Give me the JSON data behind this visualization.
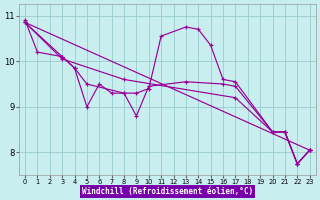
{
  "bg_color": "#c8eef0",
  "line_color": "#990099",
  "grid_color": "#99cccc",
  "xlabel": "Windchill (Refroidissement éolien,°C)",
  "xlabel_bg": "#7700aa",
  "xlim": [
    -0.5,
    23.5
  ],
  "ylim": [
    7.5,
    11.25
  ],
  "xticks": [
    0,
    1,
    2,
    3,
    4,
    5,
    6,
    7,
    8,
    9,
    10,
    11,
    12,
    13,
    14,
    15,
    16,
    17,
    18,
    19,
    20,
    21,
    22,
    23
  ],
  "yticks": [
    8,
    9,
    10,
    11
  ],
  "lines": [
    {
      "x": [
        0,
        1,
        3,
        4,
        5,
        6,
        7,
        8,
        9,
        10,
        11,
        13,
        14,
        15,
        16,
        17,
        20,
        21,
        22,
        23
      ],
      "y": [
        10.9,
        10.2,
        10.1,
        9.85,
        9.0,
        9.5,
        9.3,
        9.3,
        9.3,
        9.4,
        10.55,
        10.75,
        10.7,
        10.35,
        9.6,
        9.55,
        8.45,
        8.45,
        7.75,
        8.05
      ]
    },
    {
      "x": [
        0,
        3,
        4,
        5,
        8,
        9,
        10,
        13,
        16,
        17,
        20,
        21,
        22,
        23
      ],
      "y": [
        10.85,
        10.1,
        9.85,
        9.5,
        9.3,
        8.8,
        9.45,
        9.55,
        9.5,
        9.45,
        8.45,
        8.45,
        7.75,
        8.05
      ]
    },
    {
      "x": [
        0,
        3,
        8,
        17,
        20,
        21,
        22,
        23
      ],
      "y": [
        10.85,
        10.05,
        9.6,
        9.2,
        8.45,
        8.45,
        7.75,
        8.05
      ]
    },
    {
      "x": [
        0,
        23
      ],
      "y": [
        10.85,
        8.05
      ]
    }
  ]
}
